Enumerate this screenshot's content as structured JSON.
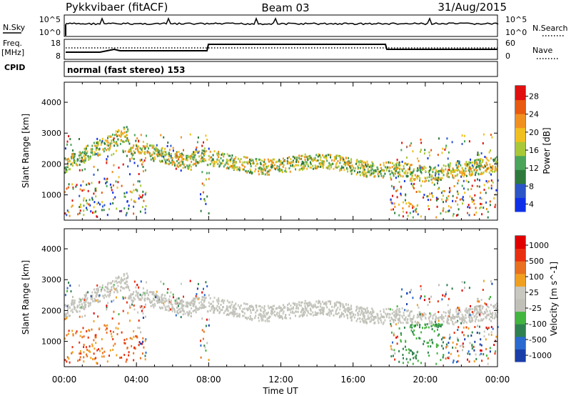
{
  "header": {
    "station": "Pykkvibaer (fitACF)",
    "beam": "Beam 03",
    "date": "31/Aug/2015"
  },
  "panels": {
    "nsky_label": "N.Sky",
    "nsky_ticks": [
      "10^5",
      "10^0"
    ],
    "nsearch_label": "N.Search",
    "nsearch_ticks": [
      "10^5",
      "10^0"
    ],
    "freq_label": "Freq.",
    "freq_unit": "[MHz]",
    "freq_ticks": [
      "18",
      "8"
    ],
    "nave_label": "Nave",
    "nave_ticks": [
      "60",
      "0"
    ],
    "cpid_label": "CPID",
    "cpid_text": "normal (fast stereo) 153"
  },
  "colors": {
    "power": [
      "#1030e8",
      "#2c55c8",
      "#2e7a3c",
      "#4aa55a",
      "#a8c838",
      "#f0c020",
      "#f09020",
      "#e85a10",
      "#e01010"
    ],
    "velocity": [
      "#1a3ea8",
      "#2a6ad0",
      "#2e8050",
      "#44b440",
      "#c0c0b8",
      "#c8c8c0",
      "#f0a020",
      "#e87020",
      "#e83010",
      "#e00000"
    ]
  },
  "chart_data": [
    {
      "type": "heatmap",
      "name": "power",
      "ylabel": "Slant Range [km]",
      "ylim": [
        180,
        4650
      ],
      "yticks": [
        1000,
        2000,
        3000,
        4000
      ],
      "colorbar_label": "Power [dB]",
      "colorbar_ticks": [
        "28",
        "24",
        "20",
        "16",
        "12",
        "8",
        "4"
      ],
      "colorbar_range": [
        0,
        32
      ]
    },
    {
      "type": "heatmap",
      "name": "velocity",
      "ylabel": "Slant Range [km]",
      "ylim": [
        180,
        4650
      ],
      "yticks": [
        1000,
        2000,
        3000,
        4000
      ],
      "colorbar_label": "Velocity [m s^-1]",
      "colorbar_ticks": [
        "1000",
        "500",
        "100",
        "25",
        "-25",
        "-100",
        "-500",
        "-1000"
      ],
      "xlabel": "Time UT",
      "xticks": [
        "00:00",
        "04:00",
        "08:00",
        "12:00",
        "16:00",
        "20:00",
        "00:00"
      ]
    }
  ]
}
